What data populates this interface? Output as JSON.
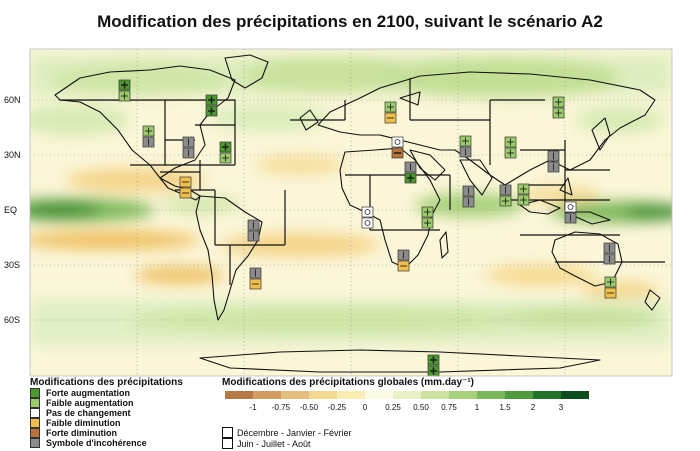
{
  "title": "Modification des précipitations en 2100, suivant le scénario A2",
  "map": {
    "lat_labels": [
      "60N",
      "30N",
      "EQ",
      "30S",
      "60S"
    ]
  },
  "legend_symbols": {
    "heading": "Modifications des précipitations",
    "items": [
      {
        "label": "Forte augmentation",
        "color": "#4a9a2e"
      },
      {
        "label": "Faible augmentation",
        "color": "#9ccc6a"
      },
      {
        "label": "Pas de changement",
        "color": "#ffffff"
      },
      {
        "label": "Faible diminution",
        "color": "#f2c04a"
      },
      {
        "label": "Forte diminution",
        "color": "#b8743a"
      },
      {
        "label": "Symbole d'incohérence",
        "color": "#8c8c8c"
      }
    ]
  },
  "legend_scale": {
    "heading": "Modifications des précipitations globales (mm.day⁻¹)",
    "colors": [
      "#b57a44",
      "#d29c62",
      "#e5bd7e",
      "#f3d98e",
      "#fbeeb5",
      "#fdfbe3",
      "#e8f2c6",
      "#cde3a0",
      "#a7d17b",
      "#7bb85a",
      "#4f9a3b",
      "#24732a",
      "#0f4d1e"
    ],
    "ticks": [
      "-1",
      "-0.75",
      "-0.50",
      "-0.25",
      "0",
      "0.25",
      "0.50",
      "0.75",
      "1",
      "1.5",
      "2",
      "3"
    ]
  },
  "seasons": [
    "Décembre - Janvier - Février",
    "Juin - Juillet - Août"
  ],
  "region_symbols": [
    {
      "type": "strong_inc",
      "type2": "weak_inc"
    },
    {
      "type": "strong_inc",
      "type2": "strong_inc"
    },
    {
      "type": "weak_inc",
      "type2": "incoherent"
    },
    {
      "type": "incoherent",
      "type2": "incoherent"
    },
    {
      "type": "weak_inc",
      "type2": "weak_dec"
    },
    {
      "type": "weak_inc",
      "type2": "weak_inc"
    },
    {
      "type": "no_change",
      "type2": "strong_dec"
    },
    {
      "type": "weak_inc",
      "type2": "incoherent"
    },
    {
      "type": "weak_inc",
      "type2": "weak_inc"
    },
    {
      "type": "strong_inc",
      "type2": "weak_inc"
    },
    {
      "type": "incoherent",
      "type2": "incoherent"
    },
    {
      "type": "weak_dec",
      "type2": "weak_dec"
    },
    {
      "type": "incoherent",
      "type2": "strong_inc"
    },
    {
      "type": "incoherent",
      "type2": "weak_inc"
    },
    {
      "type": "no_change",
      "type2": "no_change"
    },
    {
      "type": "weak_inc",
      "type2": "weak_inc"
    },
    {
      "type": "incoherent",
      "type2": "incoherent"
    },
    {
      "type": "incoherent",
      "type2": "weak_dec"
    },
    {
      "type": "no_change",
      "type2": "incoherent"
    },
    {
      "type": "incoherent",
      "type2": "weak_dec"
    },
    {
      "type": "weak_inc",
      "type2": "weak_dec"
    },
    {
      "type": "incoherent",
      "type2": "incoherent"
    },
    {
      "type": "incoherent",
      "type2": "incoherent"
    },
    {
      "type": "weak_inc",
      "type2": "weak_inc"
    },
    {
      "type": "strong_inc",
      "type2": "strong_inc"
    }
  ]
}
